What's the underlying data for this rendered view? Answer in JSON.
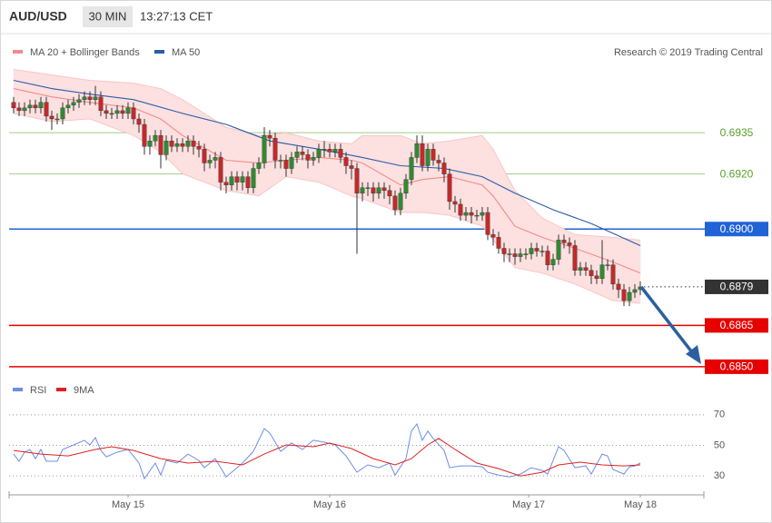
{
  "header": {
    "symbol": "AUD/USD",
    "interval": "30 MIN",
    "time": "13:27:13 CET"
  },
  "chart_data": [
    {
      "type": "candlestick",
      "credit": "Research © 2019 Trading Central",
      "xlim": [
        -2,
        127
      ],
      "ylim": [
        0.6846,
        0.697
      ],
      "up_color": "#2e8b2e",
      "down_color": "#c62828",
      "open": [
        0.6946,
        0.6944,
        0.6943,
        0.6944,
        0.6945,
        0.6944,
        0.6946,
        0.6941,
        0.694,
        0.694,
        0.6944,
        0.6945,
        0.6946,
        0.6947,
        0.6948,
        0.6947,
        0.6948,
        0.6943,
        0.6942,
        0.6942,
        0.6943,
        0.6942,
        0.6944,
        0.694,
        0.6938,
        0.693,
        0.6932,
        0.6934,
        0.6927,
        0.6932,
        0.693,
        0.6931,
        0.693,
        0.6932,
        0.693,
        0.6929,
        0.6924,
        0.6925,
        0.6926,
        0.6917,
        0.6916,
        0.6919,
        0.6917,
        0.6919,
        0.6915,
        0.6922,
        0.6924,
        0.6934,
        0.6933,
        0.6925,
        0.6925,
        0.6922,
        0.6926,
        0.6928,
        0.6927,
        0.6925,
        0.6926,
        0.6929,
        0.6929,
        0.6928,
        0.6929,
        0.6926,
        0.6923,
        0.6922,
        0.6913,
        0.6915,
        0.6915,
        0.6913,
        0.6915,
        0.6914,
        0.6912,
        0.6907,
        0.6913,
        0.6918,
        0.6926,
        0.6931,
        0.6923,
        0.6929,
        0.6925,
        0.6924,
        0.692,
        0.691,
        0.6909,
        0.6905,
        0.6906,
        0.6905,
        0.6905,
        0.6906,
        0.6898,
        0.6897,
        0.6893,
        0.6891,
        0.6891,
        0.689,
        0.6891,
        0.6891,
        0.6893,
        0.6892,
        0.6892,
        0.6887,
        0.6889,
        0.6896,
        0.6895,
        0.6894,
        0.6885,
        0.6886,
        0.6885,
        0.6883,
        0.6882,
        0.6887,
        0.6887,
        0.688,
        0.6878,
        0.6874,
        0.6877,
        0.6878
      ],
      "high": [
        0.6948,
        0.6946,
        0.6946,
        0.6947,
        0.6947,
        0.6948,
        0.6948,
        0.6943,
        0.6942,
        0.6946,
        0.6947,
        0.6948,
        0.6949,
        0.695,
        0.695,
        0.6952,
        0.695,
        0.6945,
        0.6944,
        0.6945,
        0.6945,
        0.6946,
        0.6946,
        0.6942,
        0.694,
        0.6934,
        0.6936,
        0.6936,
        0.6934,
        0.6934,
        0.6933,
        0.6933,
        0.6934,
        0.6934,
        0.6932,
        0.6931,
        0.6927,
        0.6928,
        0.6928,
        0.6919,
        0.6921,
        0.6921,
        0.6921,
        0.6921,
        0.6924,
        0.6926,
        0.6937,
        0.6936,
        0.6935,
        0.6927,
        0.6927,
        0.6928,
        0.693,
        0.693,
        0.6929,
        0.6928,
        0.6931,
        0.6932,
        0.6931,
        0.6931,
        0.6931,
        0.6928,
        0.6925,
        0.6924,
        0.6917,
        0.6917,
        0.6917,
        0.6917,
        0.6917,
        0.6916,
        0.6914,
        0.6915,
        0.692,
        0.6928,
        0.6934,
        0.6934,
        0.6931,
        0.6931,
        0.6927,
        0.6926,
        0.6922,
        0.6912,
        0.6911,
        0.6908,
        0.6908,
        0.6907,
        0.6908,
        0.6908,
        0.69,
        0.6899,
        0.6895,
        0.6893,
        0.6893,
        0.6893,
        0.6893,
        0.6895,
        0.6895,
        0.6894,
        0.6894,
        0.6891,
        0.6898,
        0.6898,
        0.6897,
        0.6896,
        0.6888,
        0.6888,
        0.6887,
        0.6885,
        0.6896,
        0.6889,
        0.6889,
        0.6882,
        0.688,
        0.6879,
        0.688,
        0.6881
      ],
      "low": [
        0.6942,
        0.6941,
        0.6941,
        0.6942,
        0.6942,
        0.6942,
        0.6939,
        0.6936,
        0.6938,
        0.6938,
        0.6942,
        0.6943,
        0.6944,
        0.6945,
        0.6945,
        0.6945,
        0.6941,
        0.694,
        0.694,
        0.694,
        0.694,
        0.694,
        0.6938,
        0.6935,
        0.6927,
        0.6927,
        0.693,
        0.6922,
        0.6925,
        0.6928,
        0.6928,
        0.6928,
        0.6928,
        0.6927,
        0.6926,
        0.6921,
        0.6922,
        0.6922,
        0.6914,
        0.6913,
        0.6914,
        0.6914,
        0.6914,
        0.6913,
        0.6913,
        0.692,
        0.6922,
        0.693,
        0.6922,
        0.6922,
        0.6919,
        0.692,
        0.6924,
        0.6925,
        0.6922,
        0.6923,
        0.6924,
        0.6926,
        0.6926,
        0.6926,
        0.6924,
        0.692,
        0.6918,
        0.6891,
        0.691,
        0.6912,
        0.691,
        0.6911,
        0.6911,
        0.6909,
        0.6905,
        0.6905,
        0.6911,
        0.6916,
        0.6924,
        0.6921,
        0.6921,
        0.6923,
        0.6921,
        0.6917,
        0.6907,
        0.6906,
        0.6903,
        0.6903,
        0.6902,
        0.6903,
        0.6903,
        0.6896,
        0.6894,
        0.6891,
        0.6888,
        0.6888,
        0.6887,
        0.6888,
        0.6889,
        0.6889,
        0.689,
        0.689,
        0.6885,
        0.6885,
        0.6887,
        0.6893,
        0.6891,
        0.6883,
        0.6883,
        0.6883,
        0.688,
        0.688,
        0.688,
        0.6885,
        0.6878,
        0.6875,
        0.6872,
        0.6872,
        0.6875,
        0.6876
      ],
      "close": [
        0.6944,
        0.6943,
        0.6944,
        0.6945,
        0.6944,
        0.6946,
        0.6941,
        0.694,
        0.694,
        0.6944,
        0.6945,
        0.6946,
        0.6947,
        0.6948,
        0.6947,
        0.6948,
        0.6943,
        0.6942,
        0.6942,
        0.6943,
        0.6942,
        0.6944,
        0.694,
        0.6938,
        0.693,
        0.6932,
        0.6934,
        0.6927,
        0.6932,
        0.693,
        0.6931,
        0.693,
        0.6932,
        0.693,
        0.6929,
        0.6924,
        0.6925,
        0.6926,
        0.6917,
        0.6916,
        0.6919,
        0.6917,
        0.6919,
        0.6915,
        0.6922,
        0.6924,
        0.6934,
        0.6933,
        0.6925,
        0.6925,
        0.6922,
        0.6926,
        0.6928,
        0.6927,
        0.6925,
        0.6926,
        0.6929,
        0.6929,
        0.6928,
        0.6929,
        0.6926,
        0.6923,
        0.6922,
        0.6913,
        0.6915,
        0.6915,
        0.6913,
        0.6915,
        0.6914,
        0.6912,
        0.6907,
        0.6913,
        0.6918,
        0.6926,
        0.6931,
        0.6923,
        0.6929,
        0.6925,
        0.6924,
        0.692,
        0.691,
        0.6909,
        0.6905,
        0.6906,
        0.6905,
        0.6905,
        0.6906,
        0.6898,
        0.6897,
        0.6893,
        0.6891,
        0.6891,
        0.689,
        0.6891,
        0.6891,
        0.6893,
        0.6892,
        0.6892,
        0.6887,
        0.6889,
        0.6896,
        0.6895,
        0.6894,
        0.6885,
        0.6886,
        0.6885,
        0.6883,
        0.6882,
        0.6887,
        0.6887,
        0.688,
        0.6878,
        0.6874,
        0.6877,
        0.6878,
        0.6879
      ],
      "series": [
        {
          "name": "MA 20 + Bollinger Bands",
          "color": "#f28b8b",
          "band_color": "#fde0e0",
          "x": [
            0,
            7,
            14,
            22,
            27,
            31,
            39,
            45,
            50,
            56,
            62,
            64,
            71,
            75,
            80,
            86,
            88,
            92,
            97,
            103,
            110,
            115
          ],
          "values": [
            0.6951,
            0.6948,
            0.6946,
            0.6944,
            0.694,
            0.6934,
            0.6925,
            0.6924,
            0.6925,
            0.6926,
            0.6925,
            0.6924,
            0.6916,
            0.6918,
            0.6919,
            0.6916,
            0.6912,
            0.6901,
            0.6897,
            0.6893,
            0.6888,
            0.6884
          ],
          "upper": [
            0.6958,
            0.6956,
            0.6954,
            0.6953,
            0.6951,
            0.6947,
            0.6937,
            0.6934,
            0.6935,
            0.6932,
            0.6931,
            0.6934,
            0.6934,
            0.6931,
            0.6932,
            0.6934,
            0.6929,
            0.6914,
            0.6904,
            0.6898,
            0.6897,
            0.6896
          ],
          "lower": [
            0.6942,
            0.6939,
            0.694,
            0.6934,
            0.6928,
            0.692,
            0.6914,
            0.6912,
            0.6919,
            0.6917,
            0.6912,
            0.6911,
            0.6906,
            0.6906,
            0.6905,
            0.6901,
            0.6896,
            0.6886,
            0.6884,
            0.688,
            0.6874,
            0.6873
          ]
        },
        {
          "name": "MA 50",
          "color": "#2a5ca8",
          "x": [
            0,
            7,
            14,
            22,
            31,
            39,
            47,
            56,
            64,
            71,
            79,
            86,
            92,
            99,
            106,
            115
          ],
          "values": [
            0.6954,
            0.6951,
            0.6949,
            0.6947,
            0.6942,
            0.6938,
            0.6932,
            0.6929,
            0.6926,
            0.6923,
            0.6922,
            0.6919,
            0.6913,
            0.6907,
            0.6902,
            0.6894
          ]
        }
      ],
      "levels": [
        {
          "value": 0.6935,
          "label": "0.6935",
          "color": "#5aa02c",
          "boxed": false
        },
        {
          "value": 0.692,
          "label": "0.6920",
          "color": "#5aa02c",
          "boxed": false
        },
        {
          "value": 0.69,
          "label": "0.6900",
          "color": "#1f63d6",
          "boxed": true
        },
        {
          "value": 0.6865,
          "label": "0.6865",
          "color": "#e60000",
          "boxed": true
        },
        {
          "value": 0.685,
          "label": "0.6850",
          "color": "#e60000",
          "boxed": true
        }
      ],
      "last_price": 0.6879,
      "last_color": "#333333"
    },
    {
      "type": "line",
      "xlim": [
        -2,
        127
      ],
      "ylim": [
        20,
        80
      ],
      "yticks": [
        30,
        50,
        70
      ],
      "grid": true,
      "xticks": [
        {
          "value": 21,
          "label": "May 15"
        },
        {
          "value": 58,
          "label": "May 16"
        },
        {
          "value": 94.5,
          "label": "May 17"
        },
        {
          "value": 115,
          "label": "May 18"
        }
      ],
      "series": [
        {
          "name": "RSI",
          "color": "#6d8de8",
          "x": [
            0,
            1,
            2,
            3,
            4,
            5,
            6,
            8,
            9,
            11,
            13,
            14,
            15,
            16,
            17,
            19,
            21,
            23,
            24,
            26,
            27,
            28,
            30,
            32,
            34,
            35,
            37,
            39,
            41,
            42,
            44,
            46,
            47,
            49,
            51,
            53,
            55,
            57,
            59,
            61,
            63,
            65,
            67,
            69,
            70,
            72,
            73,
            74,
            75,
            76,
            77,
            79,
            80,
            82,
            84,
            86,
            87,
            89,
            91,
            93,
            95,
            97,
            98,
            100,
            101,
            103,
            105,
            106,
            108,
            109,
            110,
            112,
            113,
            114,
            115
          ],
          "values": [
            44.3,
            39.6,
            45.5,
            47.3,
            41.3,
            47.3,
            39.6,
            39.6,
            47.3,
            50.3,
            53.3,
            50.3,
            55.1,
            46.7,
            42.5,
            45.5,
            47.3,
            38.4,
            28.2,
            38.4,
            30.6,
            40.1,
            38.4,
            44.3,
            40.1,
            35.4,
            41.3,
            29.4,
            35.4,
            38.4,
            46.1,
            61.0,
            58.1,
            46.1,
            51.5,
            47.3,
            53.3,
            52.1,
            50.3,
            43.1,
            32.4,
            37.2,
            35.4,
            38.4,
            30.6,
            41.3,
            59.3,
            64.0,
            53.3,
            59.3,
            54.5,
            46.7,
            35.4,
            36.6,
            36.6,
            36.0,
            32.4,
            30.6,
            29.4,
            31.2,
            35.4,
            33.6,
            31.2,
            49.1,
            46.7,
            35.4,
            36.6,
            31.2,
            44.3,
            43.1,
            34.2,
            31.2,
            36.0,
            36.6,
            38.4
          ]
        },
        {
          "name": "9MA",
          "color": "#e02020",
          "x": [
            0,
            5,
            10,
            15,
            18,
            22,
            27,
            32,
            37,
            42,
            46,
            50,
            55,
            58,
            62,
            66,
            70,
            73,
            76,
            78,
            81,
            85,
            89,
            93,
            97,
            100,
            104,
            108,
            112,
            115
          ],
          "values": [
            46.7,
            44.3,
            43.1,
            47.3,
            49.1,
            46.7,
            41.3,
            38.4,
            39.6,
            37.2,
            44.3,
            50.3,
            49.1,
            51.5,
            47.9,
            41.3,
            37.2,
            41.3,
            50.3,
            54.5,
            47.3,
            38.4,
            34.8,
            30.0,
            32.4,
            37.2,
            39.0,
            37.2,
            36.6,
            37.2
          ]
        }
      ]
    }
  ]
}
